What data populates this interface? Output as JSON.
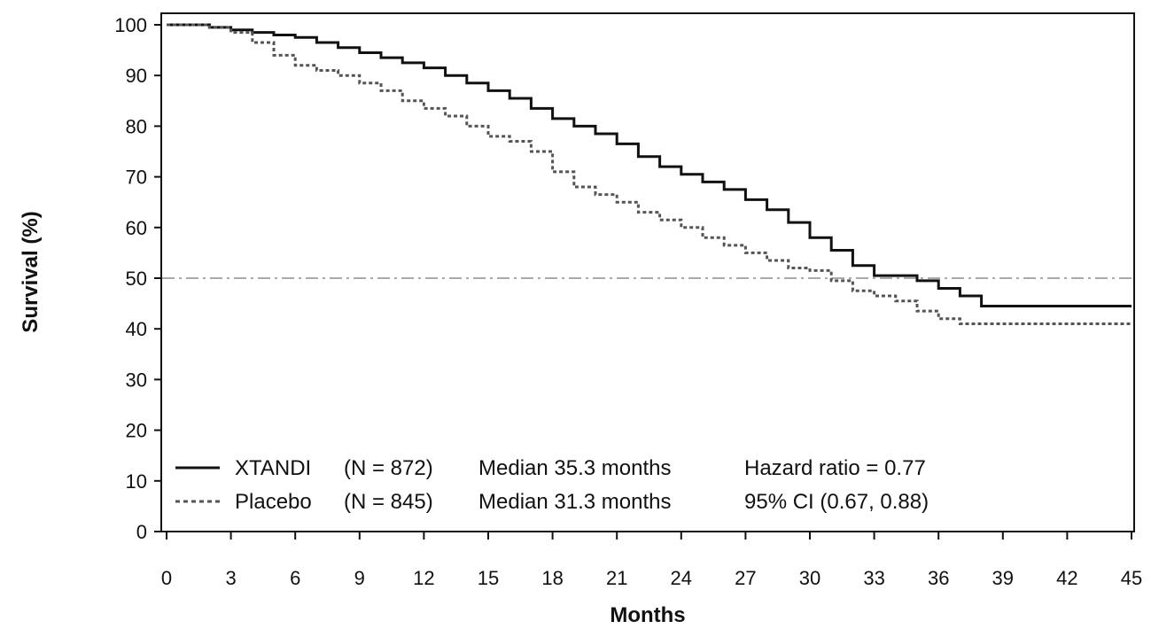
{
  "chart_data": {
    "type": "line",
    "xlabel": "Months",
    "ylabel": "Survival (%)",
    "xlim": [
      0,
      45
    ],
    "ylim": [
      0,
      100
    ],
    "xticks": [
      0,
      3,
      6,
      9,
      12,
      15,
      18,
      21,
      24,
      27,
      30,
      33,
      36,
      39,
      42,
      45
    ],
    "yticks": [
      0,
      10,
      20,
      30,
      40,
      50,
      60,
      70,
      80,
      90,
      100
    ],
    "reference_line": {
      "y": 50,
      "style": "dash-dot",
      "color": "#aaaaaa"
    },
    "grid": false,
    "legend_position": "lower-left",
    "series": [
      {
        "name": "XTANDI",
        "n_label": "(N = 872)",
        "median_label": "Median 35.3 months",
        "stat_label": "Hazard ratio = 0.77",
        "style": "solid",
        "color": "#111111",
        "x": [
          0,
          1,
          2,
          3,
          4,
          5,
          6,
          7,
          8,
          9,
          10,
          11,
          12,
          13,
          14,
          15,
          16,
          17,
          18,
          19,
          20,
          21,
          22,
          23,
          24,
          25,
          26,
          27,
          28,
          29,
          30,
          31,
          32,
          33,
          34,
          35,
          36,
          37,
          38,
          39,
          42,
          45
        ],
        "y": [
          100,
          100,
          99.5,
          99,
          98.5,
          98,
          97.5,
          96.5,
          95.5,
          94.5,
          93.5,
          92.5,
          91.5,
          90,
          88.5,
          87,
          85.5,
          83.5,
          81.5,
          80,
          78.5,
          76.5,
          74,
          72,
          70.5,
          69,
          67.5,
          65.5,
          63.5,
          61,
          58,
          55.5,
          52.5,
          50.5,
          50.5,
          49.5,
          48,
          46.5,
          44.5,
          44.5,
          44.5,
          44.5
        ]
      },
      {
        "name": "Placebo",
        "n_label": "(N = 845)",
        "median_label": "Median 31.3 months",
        "stat_label": "95% CI (0.67, 0.88)",
        "style": "dotted",
        "color": "#555555",
        "x": [
          0,
          1,
          2,
          3,
          4,
          5,
          6,
          7,
          8,
          9,
          10,
          11,
          12,
          13,
          14,
          15,
          16,
          17,
          18,
          19,
          20,
          21,
          22,
          23,
          24,
          25,
          26,
          27,
          28,
          29,
          30,
          31,
          32,
          33,
          34,
          35,
          36,
          37,
          38,
          39,
          42,
          45
        ],
        "y": [
          100,
          100,
          99.5,
          98.5,
          96.5,
          94,
          92,
          91,
          90,
          88.5,
          87,
          85,
          83.5,
          82,
          80,
          78,
          77,
          75,
          71,
          68,
          66.5,
          65,
          63,
          61.5,
          60,
          58,
          56.5,
          55,
          53.5,
          52,
          51.5,
          49.5,
          47.5,
          46.5,
          45.5,
          43.5,
          42,
          41,
          41,
          41,
          41,
          41
        ]
      }
    ]
  }
}
